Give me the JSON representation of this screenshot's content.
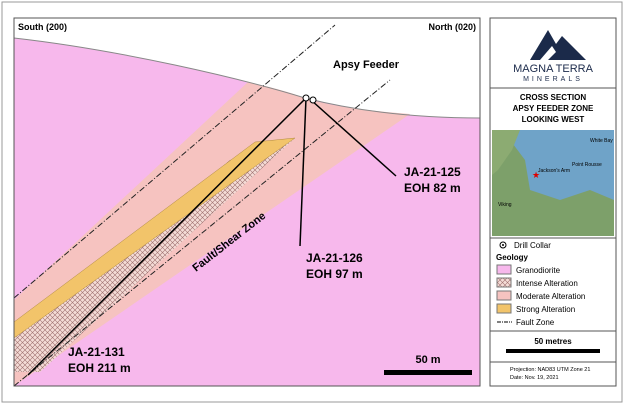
{
  "section": {
    "south_label": "South (200)",
    "north_label": "North (020)",
    "feature_label": "Apsy Feeder",
    "fault_label": "Fault/Shear Zone",
    "scale_label": "50 m",
    "drill_holes": [
      {
        "name": "JA-21-125",
        "eoh": "EOH 82 m"
      },
      {
        "name": "JA-21-126",
        "eoh": "EOH 97 m"
      },
      {
        "name": "JA-21-131",
        "eoh": "EOH 211 m"
      }
    ]
  },
  "sidebar": {
    "logo": {
      "name": "MAGNA TERRA",
      "sub": "MINERALS"
    },
    "title": [
      "CROSS SECTION",
      "APSY FEEDER ZONE",
      "LOOKING WEST"
    ],
    "map_labels": [
      "White Bay",
      "Jackson's Arm",
      "Point Rousse",
      "Viking"
    ],
    "legend": {
      "drill_collar": "Drill Collar",
      "heading": "Geology",
      "items": [
        "Granodiorite",
        "Intense Alteration",
        "Moderate Alteration",
        "Strong Alteration"
      ],
      "fault": "Fault Zone"
    },
    "scale": "50 metres",
    "projection": "Projection: NAD83 UTM Zone 21",
    "date": "Date: Nov. 19, 2021"
  }
}
